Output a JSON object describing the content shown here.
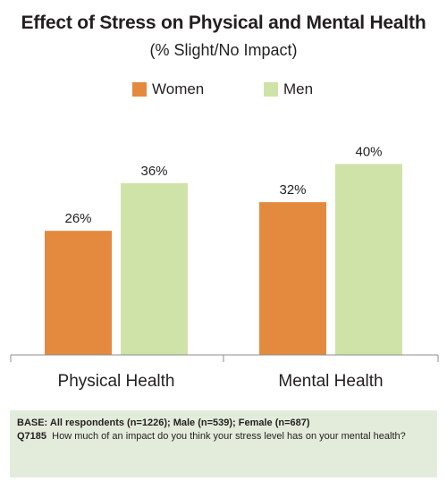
{
  "chart_data": {
    "type": "bar",
    "title": "Effect of Stress on Physical and Mental Health",
    "subtitle": "(% Slight/No Impact)",
    "categories": [
      "Physical Health",
      "Mental Health"
    ],
    "series": [
      {
        "name": "Women",
        "values": [
          26,
          32
        ],
        "labels": [
          "26%",
          "32%"
        ],
        "color": "#e48a3e"
      },
      {
        "name": "Men",
        "values": [
          36,
          40
        ],
        "labels": [
          "36%",
          "40%"
        ],
        "color": "#cfe3a8"
      }
    ],
    "ylim": [
      0,
      50
    ],
    "xlabel": "",
    "ylabel": "",
    "grid": false,
    "legend_position": "top-center"
  },
  "footnote": {
    "base": "BASE: All respondents (n=1226); Male (n=539); Female (n=687)",
    "question_code": "Q7185",
    "question_text": "How much of an impact do you think your stress level has on your mental health?"
  }
}
